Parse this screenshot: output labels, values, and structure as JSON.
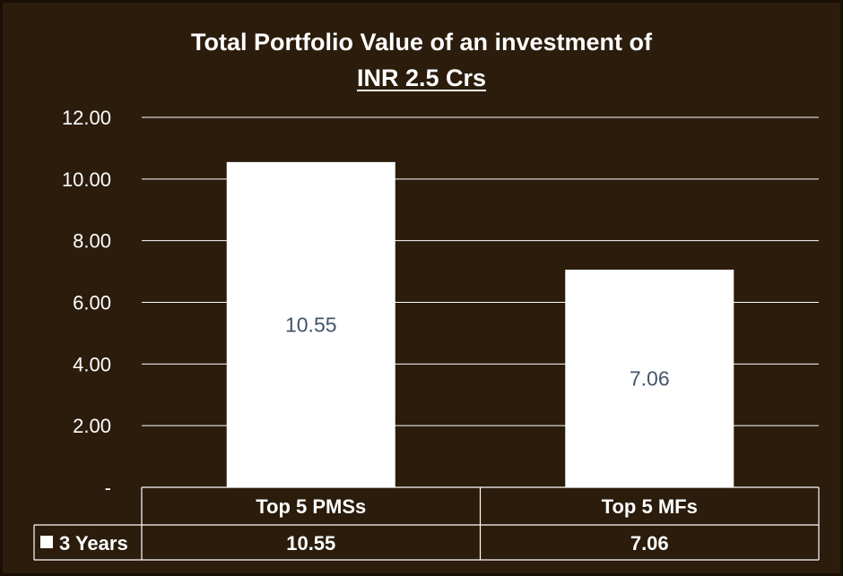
{
  "chart_data": {
    "type": "bar",
    "title_line1": "Total Portfolio Value of an investment of",
    "title_line2": "INR 2.5 Crs",
    "categories": [
      "Top 5 PMSs",
      "Top 5 MFs"
    ],
    "series": [
      {
        "name": "3 Years",
        "values": [
          10.55,
          7.06
        ]
      }
    ],
    "data_labels": [
      "10.55",
      "7.06"
    ],
    "y_ticks": [
      "-",
      "2.00",
      "4.00",
      "6.00",
      "8.00",
      "10.00",
      "12.00"
    ],
    "ylim": [
      0,
      12
    ],
    "grid": true,
    "legend_position": "data-table",
    "colors": {
      "background": "#2b1c0c",
      "bar": "#ffffff",
      "data_label": "#44546a",
      "grid": "#ffffff",
      "text": "#ffffff"
    }
  }
}
